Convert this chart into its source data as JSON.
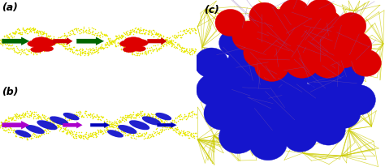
{
  "fig_width": 4.74,
  "fig_height": 2.07,
  "dpi": 100,
  "bg_color": "#ffffff",
  "label_a": "(a)",
  "label_b": "(b)",
  "label_c": "(c)",
  "label_fontsize": 9,
  "dna_color": "#E8E800",
  "red_sphere_color": "#DD0000",
  "blue_shape_color": "#1515CC",
  "green_arrow_color": "#006600",
  "red_arrow_color": "#CC0000",
  "purple_arrow_color": "#AA00CC",
  "blue_arrow_color": "#0000BB"
}
